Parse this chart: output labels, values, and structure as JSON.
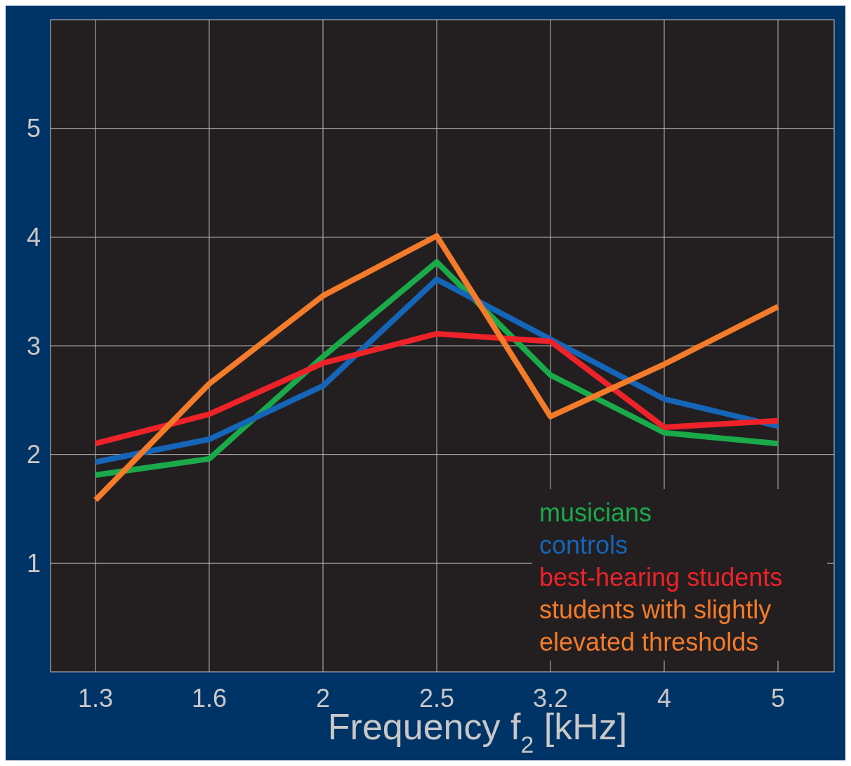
{
  "chart_data": {
    "type": "line",
    "xlabel": "Frequency f$_{2}$ [kHz]",
    "categories": [
      "1.3",
      "1.6",
      "2",
      "2.5",
      "3.2",
      "4",
      "5"
    ],
    "series": [
      {
        "name": "musicians",
        "color": "#1aaa4a",
        "values": [
          1.81,
          1.96,
          2.9,
          3.77,
          2.73,
          2.2,
          2.1
        ]
      },
      {
        "name": "controls",
        "color": "#1565b8",
        "values": [
          1.93,
          2.14,
          2.63,
          3.61,
          3.06,
          2.51,
          2.26
        ]
      },
      {
        "name": "best-hearing students",
        "color": "#ee2229",
        "values": [
          2.1,
          2.37,
          2.84,
          3.11,
          3.04,
          2.25,
          2.31
        ]
      },
      {
        "name": "students with slightly elevated thresholds",
        "color": "#f47b2a",
        "values": [
          1.58,
          2.65,
          3.46,
          4.01,
          2.35,
          2.83,
          3.36
        ]
      }
    ],
    "ylim": [
      0,
      6
    ],
    "yticks": [
      1,
      2,
      3,
      4,
      5
    ],
    "grid": true,
    "legend": "bottom right",
    "line_style": "solid"
  }
}
